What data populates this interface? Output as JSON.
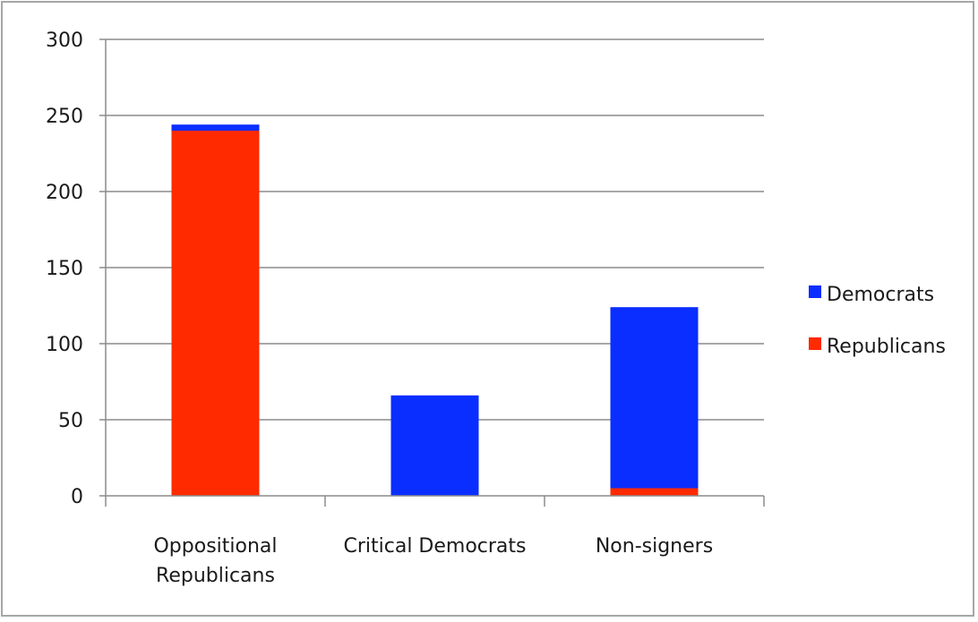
{
  "chart_data": {
    "type": "bar",
    "stacked": true,
    "categories": [
      [
        "Oppositional",
        "Republicans"
      ],
      [
        "Critical Democrats"
      ],
      [
        "Non-signers"
      ]
    ],
    "series": [
      {
        "name": "Republicans",
        "color": "#ff2a00",
        "values": [
          240,
          0,
          5
        ]
      },
      {
        "name": "Democrats",
        "color": "#0a2eff",
        "values": [
          4,
          66,
          119
        ]
      }
    ],
    "ylim": [
      0,
      300
    ],
    "yticks": [
      0,
      50,
      100,
      150,
      200,
      250,
      300
    ],
    "grid": true,
    "legend_position": "right",
    "legend_order": [
      "Democrats",
      "Republicans"
    ],
    "colors": {
      "axis": "#8c8c8c",
      "grid": "#8c8c8c",
      "frame": "#a6a6a6"
    }
  }
}
